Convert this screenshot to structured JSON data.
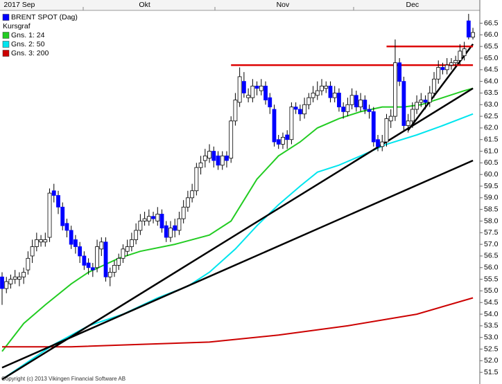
{
  "chart_data": {
    "type": "candlestick",
    "categories": [
      null,
      null,
      null,
      null,
      "2017 Sep",
      null,
      null,
      null,
      null,
      null,
      null,
      null,
      null,
      null,
      null,
      null,
      null,
      null,
      null,
      null,
      null,
      null,
      null,
      null,
      null,
      null,
      null,
      null,
      null,
      null,
      null,
      null,
      null,
      "Okt",
      null,
      null,
      null,
      null,
      null,
      null,
      null,
      null,
      null,
      null,
      null,
      null,
      null,
      null,
      null,
      null,
      null,
      null,
      null,
      null,
      null,
      null,
      null,
      null,
      null,
      null,
      null,
      null,
      null,
      null,
      null,
      "Nov",
      null,
      null,
      null,
      null,
      null,
      null,
      null,
      null,
      null,
      null,
      null,
      null,
      null,
      null,
      null,
      null,
      null,
      null,
      null,
      null,
      null,
      null,
      null,
      null,
      null,
      null,
      null,
      null,
      null,
      "Dec",
      null,
      null,
      null,
      null,
      null,
      null,
      null,
      null,
      null,
      null,
      null,
      null,
      null,
      null
    ],
    "series": [
      {
        "name": "BRENT SPOT (Dag)",
        "color": "#0000ff",
        "open": [
          55.6,
          55.1,
          55.3,
          55.5,
          55.5,
          55.6,
          55.9,
          56.5,
          56.9,
          57.1,
          57.1,
          57.3,
          59.3,
          59.1,
          58.6,
          57.9,
          57.6,
          57.2,
          56.9,
          56.5,
          56.2,
          56.0,
          56.0,
          56.8,
          57.1,
          55.6,
          55.8,
          56.1,
          56.4,
          56.7,
          56.9,
          57.2,
          57.6,
          58.0,
          58.0,
          58.2,
          58.0,
          58.3,
          57.8,
          57.3,
          57.8,
          57.6,
          58.1,
          58.6,
          59.0,
          59.3,
          60.3,
          60.6,
          60.7,
          61.0,
          60.8,
          60.4,
          60.8,
          60.7,
          62.3,
          63.1,
          64.0,
          63.3,
          63.3,
          63.8,
          63.6,
          63.8,
          63.3,
          62.8,
          61.5,
          61.3,
          61.7,
          61.5,
          62.9,
          62.8,
          62.6,
          63.0,
          63.3,
          63.4,
          63.6,
          63.7,
          63.8,
          63.3,
          63.5,
          62.9,
          62.7,
          63.0,
          63.4,
          62.9,
          63.2,
          62.8,
          62.7,
          61.5,
          61.2,
          61.4,
          62.3,
          62.5,
          64.8,
          64.0,
          62.1,
          62.3,
          62.8,
          63.1,
          63.2,
          63.1,
          63.5,
          64.1,
          64.6,
          64.5,
          64.7,
          64.8,
          64.9,
          65.1,
          66.6,
          65.9
        ],
        "high": [
          55.8,
          55.6,
          55.7,
          55.9,
          55.8,
          56.0,
          56.7,
          57.2,
          57.5,
          57.4,
          57.5,
          59.4,
          59.6,
          59.3,
          58.8,
          58.1,
          57.8,
          57.4,
          57.1,
          56.7,
          56.4,
          56.2,
          57.2,
          57.3,
          57.3,
          56.0,
          56.3,
          56.6,
          57.0,
          57.2,
          57.5,
          57.9,
          58.3,
          58.4,
          58.5,
          58.4,
          58.6,
          58.5,
          58.0,
          58.0,
          58.1,
          58.4,
          58.9,
          59.3,
          59.6,
          60.5,
          60.8,
          61.1,
          61.3,
          61.2,
          61.0,
          61.0,
          61.0,
          62.5,
          63.5,
          64.6,
          64.4,
          63.7,
          64.1,
          64.0,
          64.1,
          64.0,
          63.5,
          63.0,
          61.7,
          61.8,
          61.9,
          63.1,
          63.1,
          63.0,
          63.3,
          63.5,
          63.8,
          64.0,
          64.1,
          64.0,
          64.0,
          63.8,
          63.7,
          63.1,
          63.3,
          63.7,
          63.6,
          63.5,
          63.4,
          63.0,
          62.9,
          61.7,
          61.7,
          62.6,
          62.8,
          65.8,
          65.0,
          64.2,
          62.6,
          63.1,
          63.4,
          63.5,
          63.4,
          63.8,
          64.4,
          64.9,
          64.8,
          65.0,
          65.0,
          65.1,
          65.6,
          65.7,
          66.9,
          66.3
        ],
        "low": [
          54.4,
          54.9,
          55.1,
          55.3,
          55.2,
          55.3,
          55.7,
          56.2,
          56.7,
          56.9,
          56.9,
          57.1,
          58.8,
          58.3,
          57.6,
          57.3,
          56.8,
          56.6,
          56.2,
          55.9,
          55.7,
          55.6,
          55.8,
          56.5,
          55.4,
          55.2,
          55.6,
          55.9,
          56.2,
          56.5,
          56.7,
          57.0,
          57.4,
          57.8,
          57.8,
          57.9,
          57.8,
          57.5,
          57.1,
          57.1,
          57.3,
          57.4,
          57.9,
          58.4,
          58.8,
          59.1,
          60.0,
          60.3,
          60.5,
          60.3,
          60.2,
          60.2,
          60.3,
          60.5,
          62.1,
          62.9,
          63.3,
          63.1,
          63.1,
          63.4,
          63.4,
          63.0,
          62.6,
          61.2,
          61.1,
          61.1,
          61.1,
          61.3,
          62.6,
          62.3,
          62.4,
          62.8,
          63.1,
          63.2,
          63.4,
          63.5,
          63.1,
          63.1,
          62.7,
          62.4,
          62.5,
          62.8,
          62.7,
          62.7,
          62.6,
          62.4,
          61.2,
          61.0,
          61.0,
          61.2,
          62.0,
          62.3,
          63.8,
          61.9,
          61.8,
          62.0,
          62.6,
          62.9,
          62.8,
          62.9,
          63.3,
          63.9,
          64.3,
          64.3,
          64.5,
          64.6,
          64.7,
          64.9,
          65.8,
          65.8
        ],
        "close": [
          55.1,
          55.4,
          55.5,
          55.6,
          55.6,
          55.8,
          56.4,
          56.9,
          57.2,
          57.2,
          57.2,
          59.2,
          59.1,
          58.6,
          57.8,
          57.6,
          57.0,
          56.9,
          56.5,
          56.1,
          56.0,
          55.9,
          56.9,
          57.1,
          55.6,
          55.8,
          56.1,
          56.4,
          56.8,
          56.9,
          57.2,
          57.6,
          58.0,
          58.1,
          58.2,
          58.1,
          58.3,
          57.7,
          57.3,
          57.7,
          57.6,
          58.1,
          58.6,
          59.0,
          59.3,
          60.3,
          60.5,
          60.8,
          61.0,
          60.6,
          60.4,
          60.8,
          60.6,
          62.3,
          63.2,
          64.2,
          63.5,
          63.4,
          63.8,
          63.7,
          63.8,
          63.2,
          62.9,
          61.4,
          61.3,
          61.6,
          61.5,
          62.9,
          62.8,
          62.6,
          63.0,
          63.3,
          63.5,
          63.6,
          63.8,
          63.8,
          63.3,
          63.5,
          62.9,
          62.7,
          63.0,
          63.4,
          62.9,
          63.2,
          62.8,
          62.7,
          61.4,
          61.2,
          61.4,
          62.4,
          62.5,
          64.8,
          64.0,
          62.1,
          62.3,
          62.8,
          63.1,
          63.2,
          63.1,
          63.5,
          64.1,
          64.6,
          64.5,
          64.7,
          64.8,
          64.9,
          65.3,
          65.4,
          65.9,
          66.1
        ]
      }
    ],
    "legend_heading": "Kursgraf",
    "moving_averages": [
      {
        "name": "Gns. 1: 24",
        "color": "#22cc22",
        "x": [
          0,
          5,
          10,
          16,
          20,
          27,
          32,
          40,
          48,
          53,
          56,
          59,
          64,
          69,
          73,
          78,
          83,
          88,
          93,
          97,
          102,
          107,
          109
        ],
        "values": [
          52.4,
          53.6,
          54.4,
          55.3,
          55.8,
          56.4,
          56.7,
          57.0,
          57.4,
          58.0,
          58.9,
          59.8,
          60.8,
          61.4,
          62.0,
          62.4,
          62.7,
          62.9,
          62.9,
          63.0,
          63.3,
          63.6,
          63.7
        ]
      },
      {
        "name": "Gns. 2: 50",
        "color": "#00e5ee",
        "x": [
          0,
          8,
          12,
          20,
          28,
          36,
          43,
          48,
          54,
          59,
          64,
          69,
          73,
          78,
          83,
          89,
          96,
          102,
          109
        ],
        "values": [
          51.2,
          52.2,
          52.7,
          53.5,
          54.0,
          54.7,
          55.2,
          55.8,
          56.8,
          57.8,
          58.7,
          59.5,
          60.1,
          60.4,
          60.8,
          61.3,
          61.7,
          62.1,
          62.6
        ]
      },
      {
        "name": "Gns. 3: 200",
        "color": "#cc0000",
        "x": [
          0,
          16,
          32,
          48,
          64,
          80,
          96,
          109
        ],
        "values": [
          52.6,
          52.6,
          52.7,
          52.8,
          53.1,
          53.5,
          54.0,
          54.7
        ]
      }
    ],
    "trendlines": [
      {
        "color": "#000000",
        "x": [
          0,
          109
        ],
        "values": [
          51.2,
          63.7
        ]
      },
      {
        "color": "#000000",
        "x": [
          0,
          109
        ],
        "values": [
          51.7,
          60.6
        ]
      },
      {
        "color": "#000000",
        "x": [
          94,
          109
        ],
        "values": [
          61.9,
          65.6
        ]
      },
      {
        "color": "#dd0000",
        "x": [
          53,
          109
        ],
        "values": [
          64.7,
          64.7
        ]
      },
      {
        "color": "#dd0000",
        "x": [
          89,
          109
        ],
        "values": [
          65.5,
          65.5
        ]
      }
    ],
    "ylim": [
      51.0,
      67.05
    ],
    "yticks": [
      51.5,
      {
        "value": 52,
        "label": "52.0"
      },
      52.5,
      {
        "value": 53,
        "label": "53.0"
      },
      53.5,
      {
        "value": 54,
        "label": "54.0"
      },
      54.5,
      {
        "value": 55,
        "label": "55.0"
      },
      55.5,
      {
        "value": 56,
        "label": "56.0"
      },
      56.5,
      {
        "value": 57,
        "label": "57.0"
      },
      57.5,
      {
        "value": 58,
        "label": "58.0"
      },
      58.5,
      {
        "value": 59,
        "label": "59.0"
      },
      59.5,
      {
        "value": 60,
        "label": "60.0"
      },
      60.5,
      {
        "value": 61,
        "label": "61.0"
      },
      61.5,
      {
        "value": 62,
        "label": "62.0"
      },
      62.5,
      {
        "value": 63,
        "label": "63.0"
      },
      63.5,
      {
        "value": 64,
        "label": "64.0"
      },
      64.5,
      {
        "value": 65,
        "label": "65.0"
      },
      65.5,
      {
        "value": 66,
        "label": "66.0"
      },
      66.5
    ],
    "grid": false,
    "copyright": "Copyright (c) 2013 Vikingen Financial Software AB"
  }
}
